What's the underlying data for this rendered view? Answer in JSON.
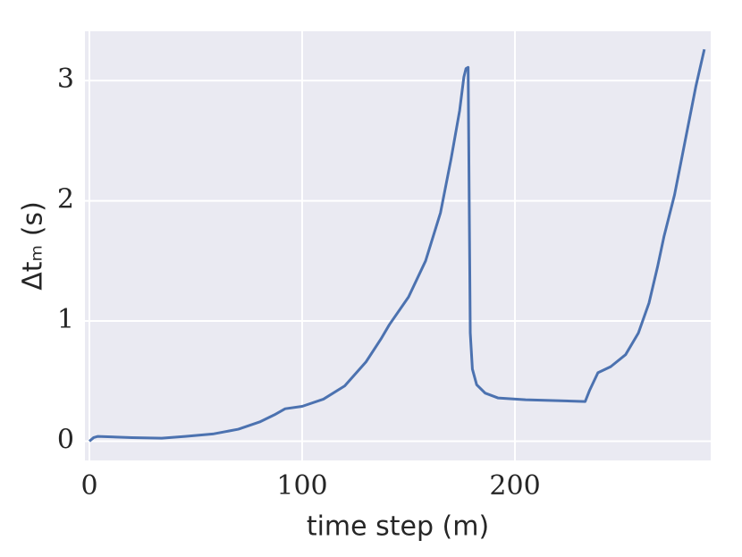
{
  "chart_data": {
    "type": "line",
    "x_label": "time step (m)",
    "y_label": "Δtₘ (s)",
    "x": [
      0,
      2,
      4,
      20,
      34,
      45,
      58,
      70,
      80,
      87,
      92,
      100,
      110,
      120,
      130,
      137,
      141,
      150,
      158,
      165,
      170,
      174,
      176,
      177,
      178,
      179,
      180,
      182,
      186,
      192,
      205,
      233,
      235,
      239,
      245,
      252,
      258,
      263,
      267,
      270,
      275,
      280,
      285,
      289
    ],
    "series": [
      {
        "color": "#4c72b0",
        "values": [
          0.0,
          0.03,
          0.04,
          0.03,
          0.025,
          0.04,
          0.06,
          0.1,
          0.16,
          0.22,
          0.27,
          0.29,
          0.35,
          0.46,
          0.66,
          0.85,
          0.97,
          1.2,
          1.5,
          1.9,
          2.35,
          2.75,
          3.03,
          3.1,
          3.11,
          0.9,
          0.6,
          0.47,
          0.4,
          0.36,
          0.345,
          0.33,
          0.42,
          0.57,
          0.62,
          0.72,
          0.9,
          1.15,
          1.45,
          1.7,
          2.05,
          2.5,
          2.95,
          3.26
        ]
      }
    ],
    "xlim": [
      -2.1,
      292
    ],
    "ylim": [
      -0.16,
      3.41
    ],
    "xticks": [
      0,
      100,
      200
    ],
    "yticks": [
      0,
      1,
      2,
      3
    ],
    "grid": true,
    "background": "#eaeaf2"
  }
}
